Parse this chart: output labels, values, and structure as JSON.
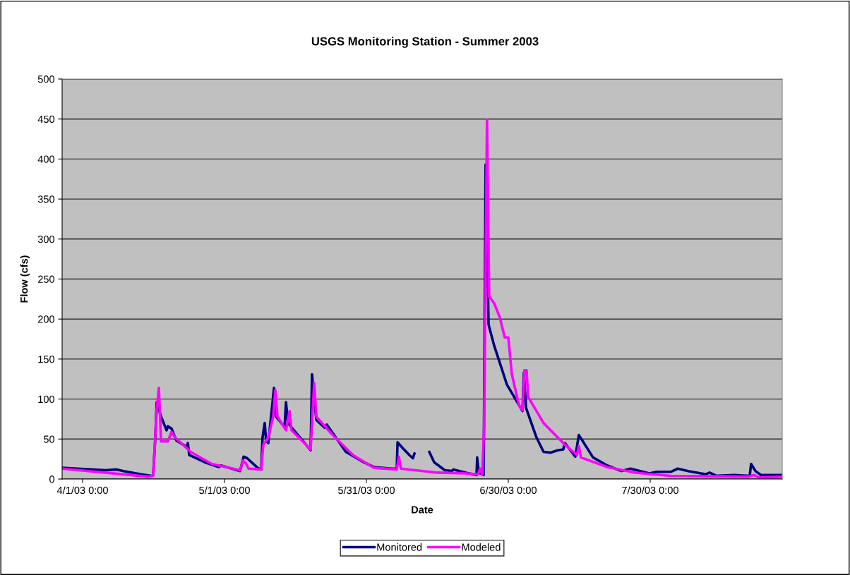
{
  "chart_data": {
    "type": "line",
    "title": "USGS Monitoring Station - Summer 2003",
    "xlabel": "Date",
    "ylabel": "Flow (cfs)",
    "xlim": [
      "2003-03-27T16:00",
      "2003-08-26T22:00"
    ],
    "xticks": [
      {
        "value": "2003-04-01",
        "label": "4/1/03 0:00"
      },
      {
        "value": "2003-05-01",
        "label": "5/1/03 0:00"
      },
      {
        "value": "2003-05-31",
        "label": "5/31/03 0:00"
      },
      {
        "value": "2003-06-30",
        "label": "6/30/03 0:00"
      },
      {
        "value": "2003-07-30",
        "label": "7/30/03 0:00"
      }
    ],
    "ylim": [
      0,
      500
    ],
    "yticks": [
      0,
      50,
      100,
      150,
      200,
      250,
      300,
      350,
      400,
      450,
      500
    ],
    "grid": "y",
    "legend": "bottom",
    "marker": "none",
    "line_style": "solid",
    "series": [
      {
        "name": "Monitored",
        "color": "#000080",
        "x": [
          "2003-03-27T16:00",
          "2003-04-05T22:00",
          "2003-04-08T04:00",
          "2003-04-09T16:00",
          "2003-04-13T09:00",
          "2003-04-15T15:00",
          "2003-04-15T22:00",
          "2003-04-16T09:00",
          "2003-04-16T16:00",
          "2003-04-17T14:00",
          "2003-04-18T18:00",
          "2003-04-19T01:00",
          "2003-04-19T19:00",
          "2003-04-20T20:00",
          "2003-04-23T02:00",
          "2003-04-23T06:00",
          "2003-04-23T13:00",
          "2003-04-26T20:00",
          "2003-04-29T19:00",
          "2003-04-30T06:00",
          "2003-05-04T07:00",
          "2003-05-05T01:00",
          "2003-05-05T19:00",
          "2003-05-08T00:00",
          "2003-05-08T18:00",
          "2003-05-09T01:00",
          "2003-05-09T12:00",
          "2003-05-09T19:00",
          "2003-05-10T06:00",
          "2003-05-11T00:00",
          "2003-05-11T11:00",
          "2003-05-11T22:00",
          "2003-05-13T17:00",
          "2003-05-14T00:00",
          "2003-05-14T10:00",
          "2003-05-19T05:00",
          "2003-05-19T12:00",
          "2003-05-20T10:00",
          "2003-05-22T05:00",
          "2003-05-22T15:00",
          "2003-05-26T16:00",
          "2003-05-30T10:00",
          "2003-06-01T15:00",
          "2003-06-05T09:00",
          "2003-06-06T10:00",
          "2003-06-06T14:00",
          "2003-06-07T15:00",
          "2003-06-09T02:00",
          "2003-06-09T20:00",
          "2003-06-10T04:00",
          "2003-06-12T00:00",
          "2003-06-13T07:00",
          "2003-06-14T08:00",
          "2003-06-16T14:00",
          "2003-06-18T01:00",
          "2003-06-18T09:00",
          "2003-06-21T01:00",
          "2003-06-23T07:00",
          "2003-06-23T10:00",
          "2003-06-23T18:00",
          "2003-06-24T19:00",
          "2003-06-25T05:00",
          "2003-06-25T20:00",
          "2003-06-27T00:00",
          "2003-06-28T12:00",
          "2003-06-29T17:00",
          "2003-07-03T00:00",
          "2003-07-03T07:00",
          "2003-07-03T18:00",
          "2003-07-05T23:00",
          "2003-07-07T11:00",
          "2003-07-08T23:00",
          "2003-07-10T11:00",
          "2003-07-11T15:00",
          "2003-07-11T23:00",
          "2003-07-14T04:00",
          "2003-07-14T22:00",
          "2003-07-15T16:00",
          "2003-07-17T22:00",
          "2003-07-20T22:00",
          "2003-07-23T21:00",
          "2003-07-25T20:00",
          "2003-07-29T20:00",
          "2003-07-31T08:00",
          "2003-08-03T08:00",
          "2003-08-04T20:00",
          "2003-08-07T01:00",
          "2003-08-10T19:00",
          "2003-08-11T13:00",
          "2003-08-13T01:00",
          "2003-08-16T18:00",
          "2003-08-20T01:00",
          "2003-08-20T08:00",
          "2003-08-21T06:00",
          "2003-08-22T10:00",
          "2003-08-26T22:00"
        ],
        "values": [
          14,
          11,
          12,
          10,
          6,
          4,
          5,
          52,
          96,
          78,
          61,
          66,
          63,
          48,
          40,
          45,
          30,
          21,
          15,
          17,
          10,
          28,
          26,
          14,
          12,
          52,
          70,
          48,
          45,
          87,
          114,
          78,
          65,
          96,
          70,
          36,
          131,
          74,
          64,
          68,
          34,
          21,
          15,
          13,
          13,
          46,
          39,
          30,
          26,
          32,
          null,
          34,
          21,
          11,
          10,
          12,
          8,
          5,
          27,
          8,
          5,
          393,
          193,
          167,
          140,
          118,
          85,
          133,
          89,
          52,
          34,
          33,
          36,
          37,
          45,
          28,
          55,
          48,
          27,
          17,
          10,
          13,
          7,
          9,
          9,
          13,
          10,
          6,
          8,
          4,
          5,
          4,
          19,
          10,
          5,
          5
        ]
      },
      {
        "name": "Modeled",
        "color": "#ff00ff",
        "x": [
          "2003-03-27T16:00",
          "2003-04-14T21:00",
          "2003-04-15T22:00",
          "2003-04-16T16:00",
          "2003-04-17T03:00",
          "2003-04-17T14:00",
          "2003-04-19T01:00",
          "2003-04-19T19:00",
          "2003-04-20T13:00",
          "2003-04-23T20:00",
          "2003-04-28T07:00",
          "2003-05-04T07:00",
          "2003-05-04T21:00",
          "2003-05-05T12:00",
          "2003-05-06T02:00",
          "2003-05-08T18:00",
          "2003-05-09T05:00",
          "2003-05-10T06:00",
          "2003-05-11T07:00",
          "2003-05-11T18:00",
          "2003-05-12T05:00",
          "2003-05-14T00:00",
          "2003-05-14T18:00",
          "2003-05-15T04:00",
          "2003-05-19T05:00",
          "2003-05-19T23:00",
          "2003-05-20T10:00",
          "2003-05-23T17:00",
          "2003-05-28T04:00",
          "2003-06-01T15:00",
          "2003-06-06T10:00",
          "2003-06-06T21:00",
          "2003-06-07T07:00",
          "2003-06-15T02:00",
          "2003-06-21T01:00",
          "2003-06-23T14:00",
          "2003-06-24T01:00",
          "2003-06-24T12:00",
          "2003-06-24T22:00",
          "2003-06-25T12:00",
          "2003-06-25T23:00",
          "2003-06-27T00:00",
          "2003-06-28T05:00",
          "2003-06-29T06:00",
          "2003-06-30T00:00",
          "2003-06-30T18:00",
          "2003-07-02T06:00",
          "2003-07-03T00:00",
          "2003-07-03T10:00",
          "2003-07-03T21:00",
          "2003-07-04T04:00",
          "2003-07-07T11:00",
          "2003-07-11T23:00",
          "2003-07-14T12:00",
          "2003-07-14T22:00",
          "2003-07-15T09:00",
          "2003-07-20T22:00",
          "2003-07-26T21:00",
          "2003-08-03T08:00",
          "2003-08-19T18:00",
          "2003-08-20T23:00",
          "2003-08-22T00:00",
          "2003-08-26T22:00"
        ],
        "values": [
          13,
          3,
          4,
          87,
          114,
          47,
          47,
          59,
          52,
          34,
          19,
          11,
          23,
          20,
          13,
          12,
          43,
          52,
          78,
          111,
          78,
          61,
          85,
          61,
          37,
          120,
          78,
          56,
          30,
          14,
          12,
          28,
          13,
          8,
          7,
          6,
          13,
          6,
          70,
          449,
          228,
          220,
          202,
          177,
          177,
          131,
          92,
          86,
          136,
          136,
          103,
          70,
          43,
          30,
          41,
          27,
          15,
          8,
          4,
          3,
          5,
          2,
          3
        ]
      }
    ]
  }
}
